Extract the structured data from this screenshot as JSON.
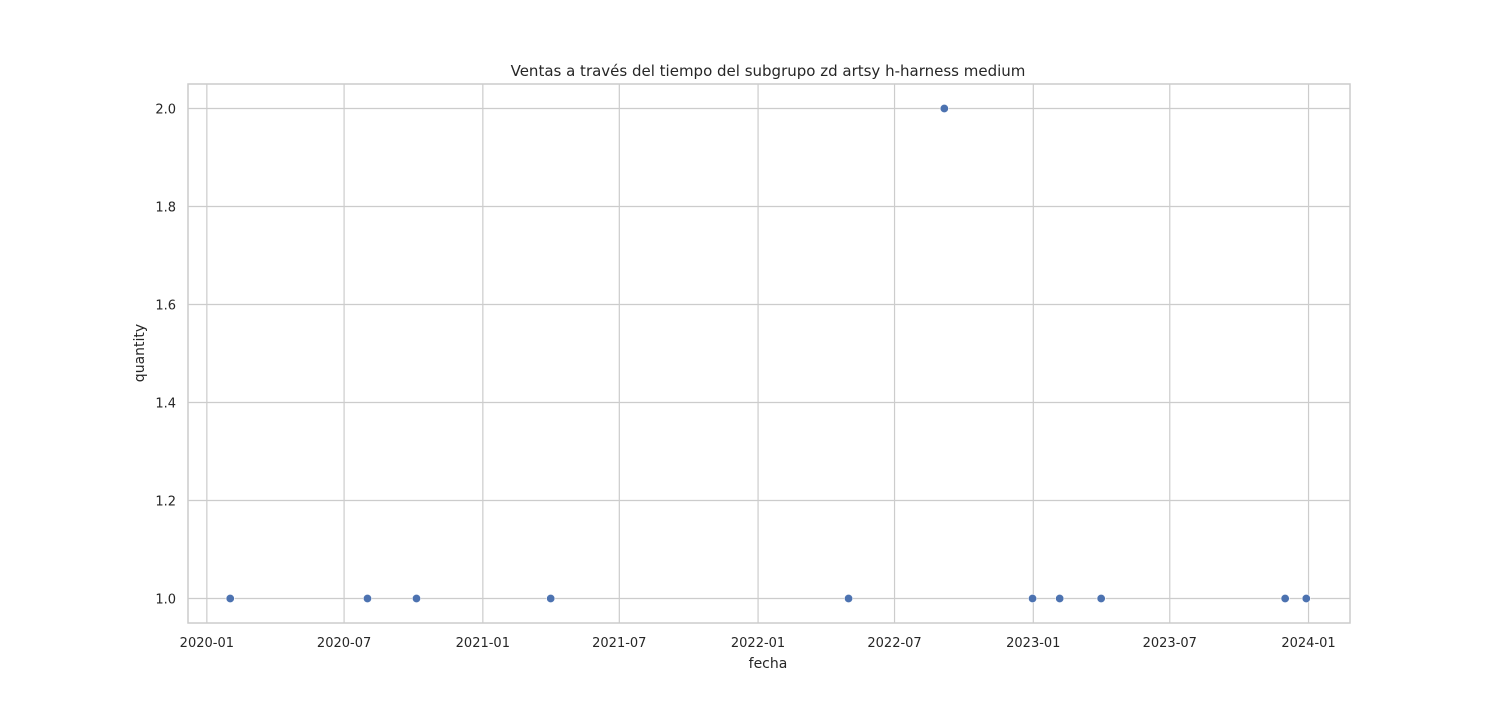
{
  "chart_data": {
    "type": "scatter",
    "title": "Ventas a través del tiempo del subgrupo zd artsy h-harness medium",
    "xlabel": "fecha",
    "ylabel": "quantity",
    "x_is_date": true,
    "xlim": [
      "2019-12-07",
      "2024-02-25"
    ],
    "ylim": [
      0.95,
      2.05
    ],
    "xticks": [
      {
        "value": "2020-01-01",
        "label": "2020-01"
      },
      {
        "value": "2020-07-01",
        "label": "2020-07"
      },
      {
        "value": "2021-01-01",
        "label": "2021-01"
      },
      {
        "value": "2021-07-01",
        "label": "2021-07"
      },
      {
        "value": "2022-01-01",
        "label": "2022-01"
      },
      {
        "value": "2022-07-01",
        "label": "2022-07"
      },
      {
        "value": "2023-01-01",
        "label": "2023-01"
      },
      {
        "value": "2023-07-01",
        "label": "2023-07"
      },
      {
        "value": "2024-01-01",
        "label": "2024-01"
      }
    ],
    "yticks": [
      {
        "value": 1.0,
        "label": "1.0"
      },
      {
        "value": 1.2,
        "label": "1.2"
      },
      {
        "value": 1.4,
        "label": "1.4"
      },
      {
        "value": 1.6,
        "label": "1.6"
      },
      {
        "value": 1.8,
        "label": "1.8"
      },
      {
        "value": 2.0,
        "label": "2.0"
      }
    ],
    "grid": true,
    "marker_color": "#4c72b0",
    "grid_color": "#cccccc",
    "points": [
      {
        "x": "2020-02-01",
        "y": 1
      },
      {
        "x": "2020-08-01",
        "y": 1
      },
      {
        "x": "2020-10-05",
        "y": 1
      },
      {
        "x": "2021-04-01",
        "y": 1
      },
      {
        "x": "2022-05-01",
        "y": 1
      },
      {
        "x": "2022-09-05",
        "y": 2
      },
      {
        "x": "2022-12-31",
        "y": 1
      },
      {
        "x": "2023-02-05",
        "y": 1
      },
      {
        "x": "2023-04-01",
        "y": 1
      },
      {
        "x": "2023-12-01",
        "y": 1
      },
      {
        "x": "2023-12-29",
        "y": 1
      }
    ]
  }
}
